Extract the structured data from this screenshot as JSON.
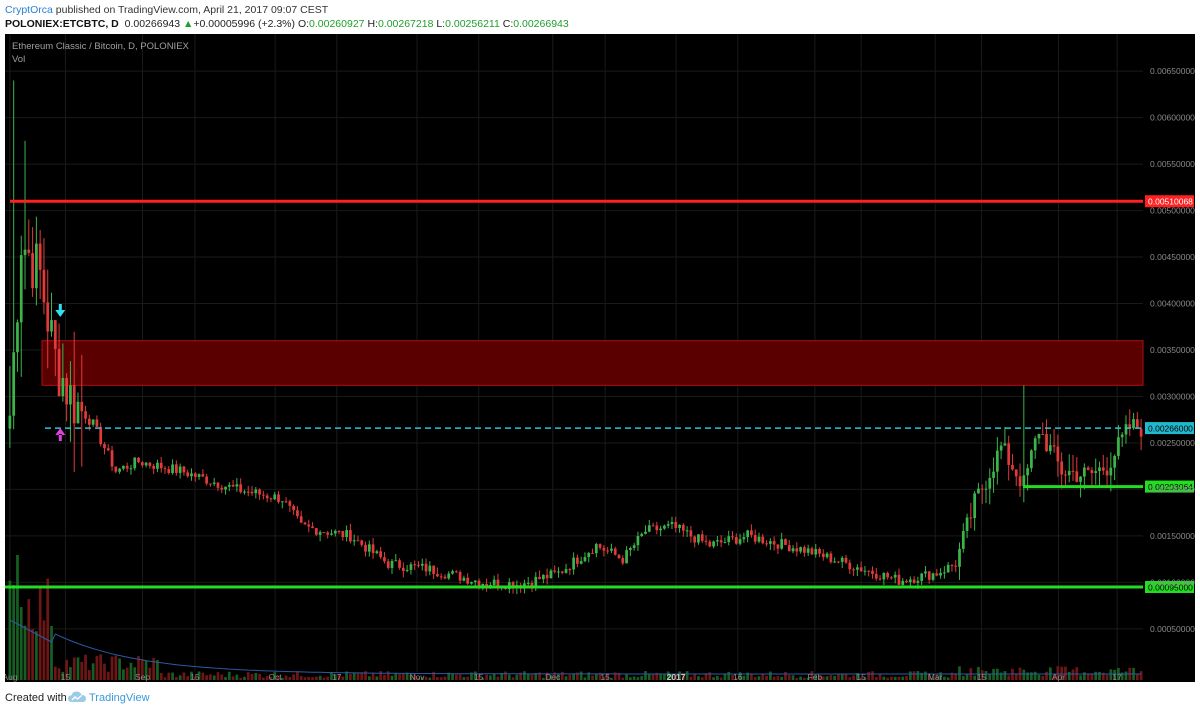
{
  "header": {
    "author": "CryptOrca",
    "published_text": " published on TradingView.com, April 21, 2017 09:07 CEST",
    "symbol": "POLONIEX:ETCBTC, D",
    "last_price": "0.00266943",
    "change_arrow": "▲",
    "change": "+0.00005996 (+2.3%)",
    "open_label": "O:",
    "open": "0.00260927",
    "high_label": "H:",
    "high": "0.00267218",
    "low_label": "L:",
    "low": "0.00256211",
    "close_label": "C:",
    "close": "0.00266943"
  },
  "chart": {
    "title": "Ethereum Classic / Bitcoin, D, POLONIEX",
    "volume_label": "Vol"
  },
  "footer": {
    "created_with": "Created with",
    "brand": "TradingView"
  },
  "colors": {
    "background": "#000000",
    "up_candle": "#3bb54a",
    "down_candle": "#e03a3a",
    "resistance_line": "#ff2020",
    "support_line": "#22dd22",
    "zone_fill": "#5a0000",
    "price_dashed": "#2ec4d6",
    "arrow_down": "#2ee0f0",
    "arrow_up": "#e040e0"
  },
  "chart_data": {
    "type": "candlestick",
    "title": "Ethereum Classic / Bitcoin, D, POLONIEX",
    "ylim": [
      0.0001,
      0.0069
    ],
    "y_ticks": [
      "0.00650000",
      "0.00600000",
      "0.00550000",
      "0.00500000",
      "0.00450000",
      "0.00400000",
      "0.00350000",
      "0.00300000",
      "0.00250000",
      "0.00200000",
      "0.00150000",
      "0.00100000",
      "0.00050000"
    ],
    "x_ticks": [
      "Aug",
      "15",
      "Sep",
      "15",
      "Oct",
      "17",
      "Nov",
      "15",
      "Dec",
      "15",
      "2017",
      "16",
      "Feb",
      "15",
      "Mar",
      "15",
      "Apr",
      "17"
    ],
    "grid": true,
    "annotations": {
      "horizontal_lines": [
        {
          "price": 0.00510068,
          "label": "0.00510068",
          "color": "red"
        },
        {
          "price": 0.00266,
          "label": "0.00266000",
          "color": "cyan",
          "style": "dashed"
        },
        {
          "price": 0.00203064,
          "label": "0.00203064",
          "color": "green"
        },
        {
          "price": 0.00095,
          "label": "0.00095000",
          "color": "green"
        }
      ],
      "zone": {
        "from": 0.00312,
        "to": 0.0036,
        "color": "dark-red"
      },
      "arrows": [
        {
          "type": "down",
          "color": "cyan"
        },
        {
          "type": "up",
          "color": "magenta"
        }
      ]
    },
    "key_points": [
      {
        "t": 0,
        "close": 0.0028
      },
      {
        "t": 3,
        "close": 0.0047
      },
      {
        "t": 8,
        "close": 0.0043
      },
      {
        "t": 12,
        "close": 0.0034
      },
      {
        "t": 16,
        "close": 0.003
      },
      {
        "t": 22,
        "close": 0.0027
      },
      {
        "t": 28,
        "close": 0.0022
      },
      {
        "t": 34,
        "close": 0.0023
      },
      {
        "t": 45,
        "close": 0.0022
      },
      {
        "t": 60,
        "close": 0.002
      },
      {
        "t": 72,
        "close": 0.0019
      },
      {
        "t": 77,
        "close": 0.0016
      },
      {
        "t": 90,
        "close": 0.0015
      },
      {
        "t": 100,
        "close": 0.0012
      },
      {
        "t": 110,
        "close": 0.00115
      },
      {
        "t": 125,
        "close": 0.001
      },
      {
        "t": 135,
        "close": 0.00098
      },
      {
        "t": 145,
        "close": 0.0011
      },
      {
        "t": 155,
        "close": 0.0014
      },
      {
        "t": 162,
        "close": 0.00125
      },
      {
        "t": 168,
        "close": 0.00155
      },
      {
        "t": 175,
        "close": 0.0016
      },
      {
        "t": 185,
        "close": 0.0014
      },
      {
        "t": 195,
        "close": 0.0015
      },
      {
        "t": 210,
        "close": 0.00135
      },
      {
        "t": 225,
        "close": 0.00115
      },
      {
        "t": 235,
        "close": 0.00102
      },
      {
        "t": 245,
        "close": 0.0011
      },
      {
        "t": 250,
        "close": 0.0012
      },
      {
        "t": 255,
        "close": 0.00185
      },
      {
        "t": 262,
        "close": 0.00245
      },
      {
        "t": 268,
        "close": 0.00205
      },
      {
        "t": 272,
        "close": 0.00265
      },
      {
        "t": 278,
        "close": 0.0022
      },
      {
        "t": 285,
        "close": 0.00215
      },
      {
        "t": 290,
        "close": 0.00225
      },
      {
        "t": 296,
        "close": 0.00266943
      }
    ]
  }
}
